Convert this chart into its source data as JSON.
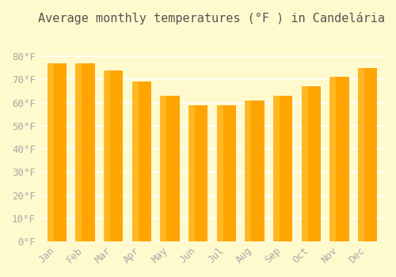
{
  "title": "Average monthly temperatures (°F ) in Candelária",
  "months": [
    "Jan",
    "Feb",
    "Mar",
    "Apr",
    "May",
    "Jun",
    "Jul",
    "Aug",
    "Sep",
    "Oct",
    "Nov",
    "Dec"
  ],
  "values": [
    77,
    77,
    74,
    69,
    63,
    59,
    59,
    61,
    63,
    67,
    71,
    75
  ],
  "bar_color": "#FFA500",
  "bar_edge_color": "#FF8C00",
  "background_color": "#FFFACD",
  "grid_color": "#FFFFFF",
  "ylim": [
    0,
    90
  ],
  "yticks": [
    0,
    10,
    20,
    30,
    40,
    50,
    60,
    70,
    80
  ],
  "tick_label_color": "#AAAAAA",
  "title_fontsize": 11,
  "tick_fontsize": 9
}
